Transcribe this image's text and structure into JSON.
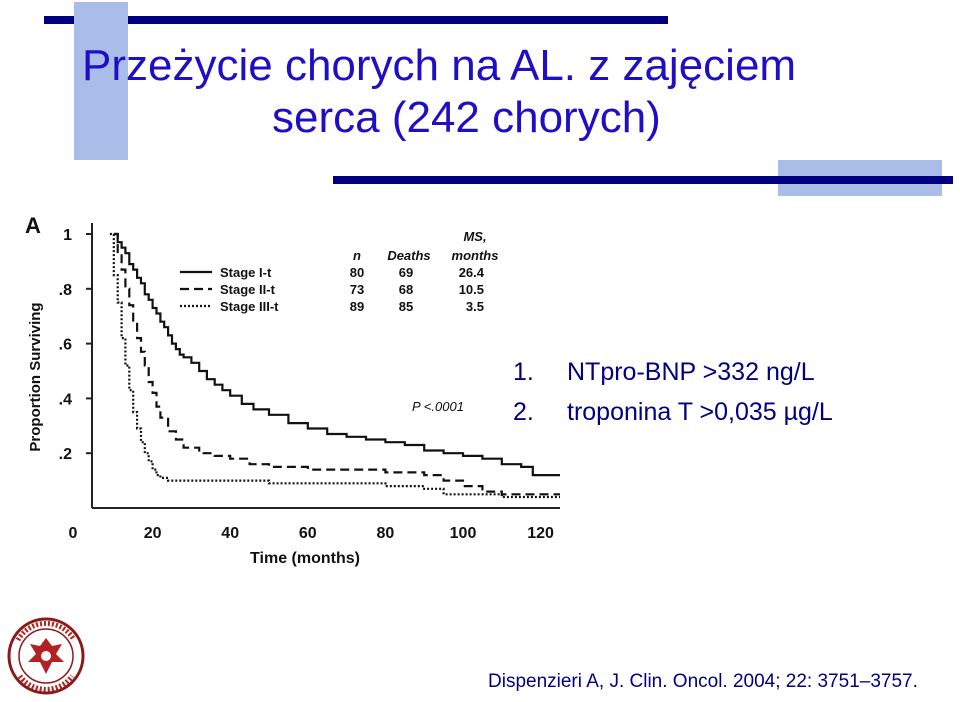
{
  "slide": {
    "title_line1": "Przeżycie chorych na AL. z zajęciem",
    "title_line2": "serca (242 chorych)",
    "notes": [
      {
        "num": "1.",
        "text": "NTpro-BNP >332 ng/L"
      },
      {
        "num": "2.",
        "text": "troponina T >0,035 µg/L"
      }
    ],
    "citation": "Dispenzieri A, J. Clin. Oncol. 2004; 22: 3751–3757.",
    "accent_color": "#1e0ec6",
    "decor_color": "#a9bde8",
    "line_color": "#000080",
    "logo_text": "UNIVERSITAS MEDICA VARSOVIENSIS SALUTI PUBLICAE"
  },
  "chart_data": {
    "type": "line",
    "panel_label": "A",
    "xlabel": "Time (months)",
    "ylabel": "Proportion Surviving",
    "xlim": [
      0,
      125
    ],
    "ylim": [
      0,
      1
    ],
    "x_ticks": [
      0,
      20,
      40,
      60,
      80,
      100,
      120
    ],
    "x_tick_labels": [
      "0",
      "20",
      "40",
      "60",
      "80",
      "100",
      "120"
    ],
    "y_ticks": [
      0.2,
      0.4,
      0.6,
      0.8,
      1
    ],
    "y_tick_labels": [
      ".2",
      ".4",
      ".6",
      ".8",
      "1"
    ],
    "grid": false,
    "legend_position": "top-right",
    "legend_headers": {
      "n": "n",
      "deaths": "Deaths",
      "ms": "MS,",
      "ms_unit": "months"
    },
    "p_value": "P <.0001",
    "series": [
      {
        "name": "Stage I-t",
        "n": "80",
        "deaths": "69",
        "ms": "26.4",
        "style": "solid",
        "x": [
          10,
          11,
          12,
          13,
          14,
          15,
          16,
          17,
          18,
          19,
          20,
          21,
          22,
          23,
          24,
          25,
          26,
          27,
          28,
          30,
          32,
          34,
          36,
          38,
          40,
          43,
          46,
          50,
          55,
          60,
          65,
          70,
          75,
          80,
          85,
          90,
          95,
          100,
          105,
          110,
          115,
          118,
          125
        ],
        "y": [
          1.0,
          0.97,
          0.95,
          0.93,
          0.89,
          0.87,
          0.84,
          0.82,
          0.78,
          0.76,
          0.73,
          0.71,
          0.68,
          0.66,
          0.63,
          0.6,
          0.58,
          0.56,
          0.55,
          0.53,
          0.5,
          0.47,
          0.45,
          0.43,
          0.41,
          0.38,
          0.36,
          0.34,
          0.31,
          0.29,
          0.27,
          0.26,
          0.25,
          0.24,
          0.23,
          0.21,
          0.2,
          0.19,
          0.18,
          0.16,
          0.15,
          0.12,
          0.12
        ]
      },
      {
        "name": "Stage II-t",
        "n": "73",
        "deaths": "68",
        "ms": "10.5",
        "style": "dashed",
        "x": [
          10,
          11,
          12,
          13,
          14,
          15,
          16,
          17,
          18,
          19,
          20,
          21,
          22,
          24,
          26,
          28,
          32,
          36,
          40,
          45,
          50,
          60,
          70,
          80,
          90,
          95,
          100,
          105,
          110,
          125
        ],
        "y": [
          1.0,
          0.93,
          0.87,
          0.8,
          0.74,
          0.68,
          0.62,
          0.57,
          0.52,
          0.46,
          0.42,
          0.37,
          0.33,
          0.28,
          0.25,
          0.22,
          0.2,
          0.19,
          0.18,
          0.16,
          0.15,
          0.14,
          0.14,
          0.13,
          0.12,
          0.1,
          0.08,
          0.06,
          0.05,
          0.05
        ]
      },
      {
        "name": "Stage III-t",
        "n": "89",
        "deaths": "85",
        "ms": "3.5",
        "style": "dotted",
        "x": [
          9,
          10,
          11,
          12,
          13,
          14,
          15,
          16,
          17,
          18,
          19,
          20,
          21,
          22,
          24,
          27,
          30,
          35,
          40,
          45,
          50,
          60,
          70,
          80,
          90,
          95,
          100,
          105,
          110,
          125
        ],
        "y": [
          1.0,
          0.85,
          0.75,
          0.62,
          0.52,
          0.43,
          0.35,
          0.29,
          0.24,
          0.2,
          0.17,
          0.14,
          0.12,
          0.11,
          0.1,
          0.1,
          0.1,
          0.1,
          0.1,
          0.1,
          0.09,
          0.09,
          0.09,
          0.08,
          0.07,
          0.05,
          0.05,
          0.05,
          0.04,
          0.04
        ]
      }
    ]
  }
}
